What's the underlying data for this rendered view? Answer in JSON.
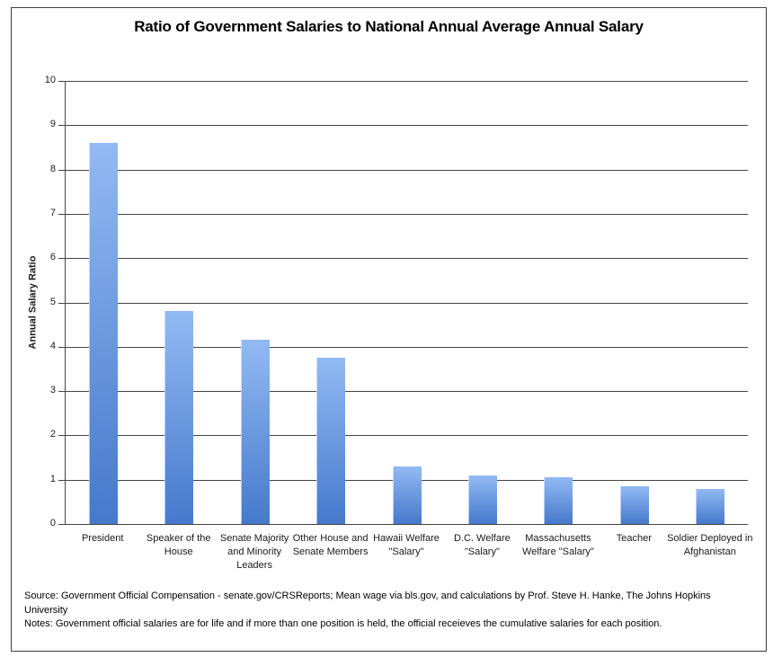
{
  "chart_data": {
    "type": "bar",
    "title": "Ratio of Government Salaries to National Annual Average Annual Salary",
    "categories": [
      "President",
      "Speaker of the House",
      "Senate Majority and Minority Leaders",
      "Other House and Senate Members",
      "Hawaii Welfare \"Salary\"",
      "D.C. Welfare \"Salary\"",
      "Massachusetts Welfare \"Salary\"",
      "Teacher",
      "Soldier Deployed in Afghanistan"
    ],
    "values": [
      8.6,
      4.8,
      4.15,
      3.75,
      1.3,
      1.1,
      1.05,
      0.85,
      0.8
    ],
    "xlabel": "",
    "ylabel": "Annual Salary Ratio",
    "ylim": [
      0,
      10
    ],
    "ytick_step": 1,
    "grid": "horizontal",
    "legend": "none",
    "colors": {
      "bar_gradient_top": "#92BAF3",
      "bar_gradient_bottom": "#4679CC",
      "gridline": "#454545",
      "text": "#1a1a1a",
      "border": "#3f3f3f"
    }
  },
  "footer": {
    "source_line": "Source: Government Official Compensation - senate.gov/CRSReports; Mean wage via bls.gov, and calculations by Prof. Steve H. Hanke, The Johns Hopkins University",
    "notes_line": "Notes: Government official salaries are for life and if more than one position is held, the official receieves the cumulative salaries for each position."
  }
}
